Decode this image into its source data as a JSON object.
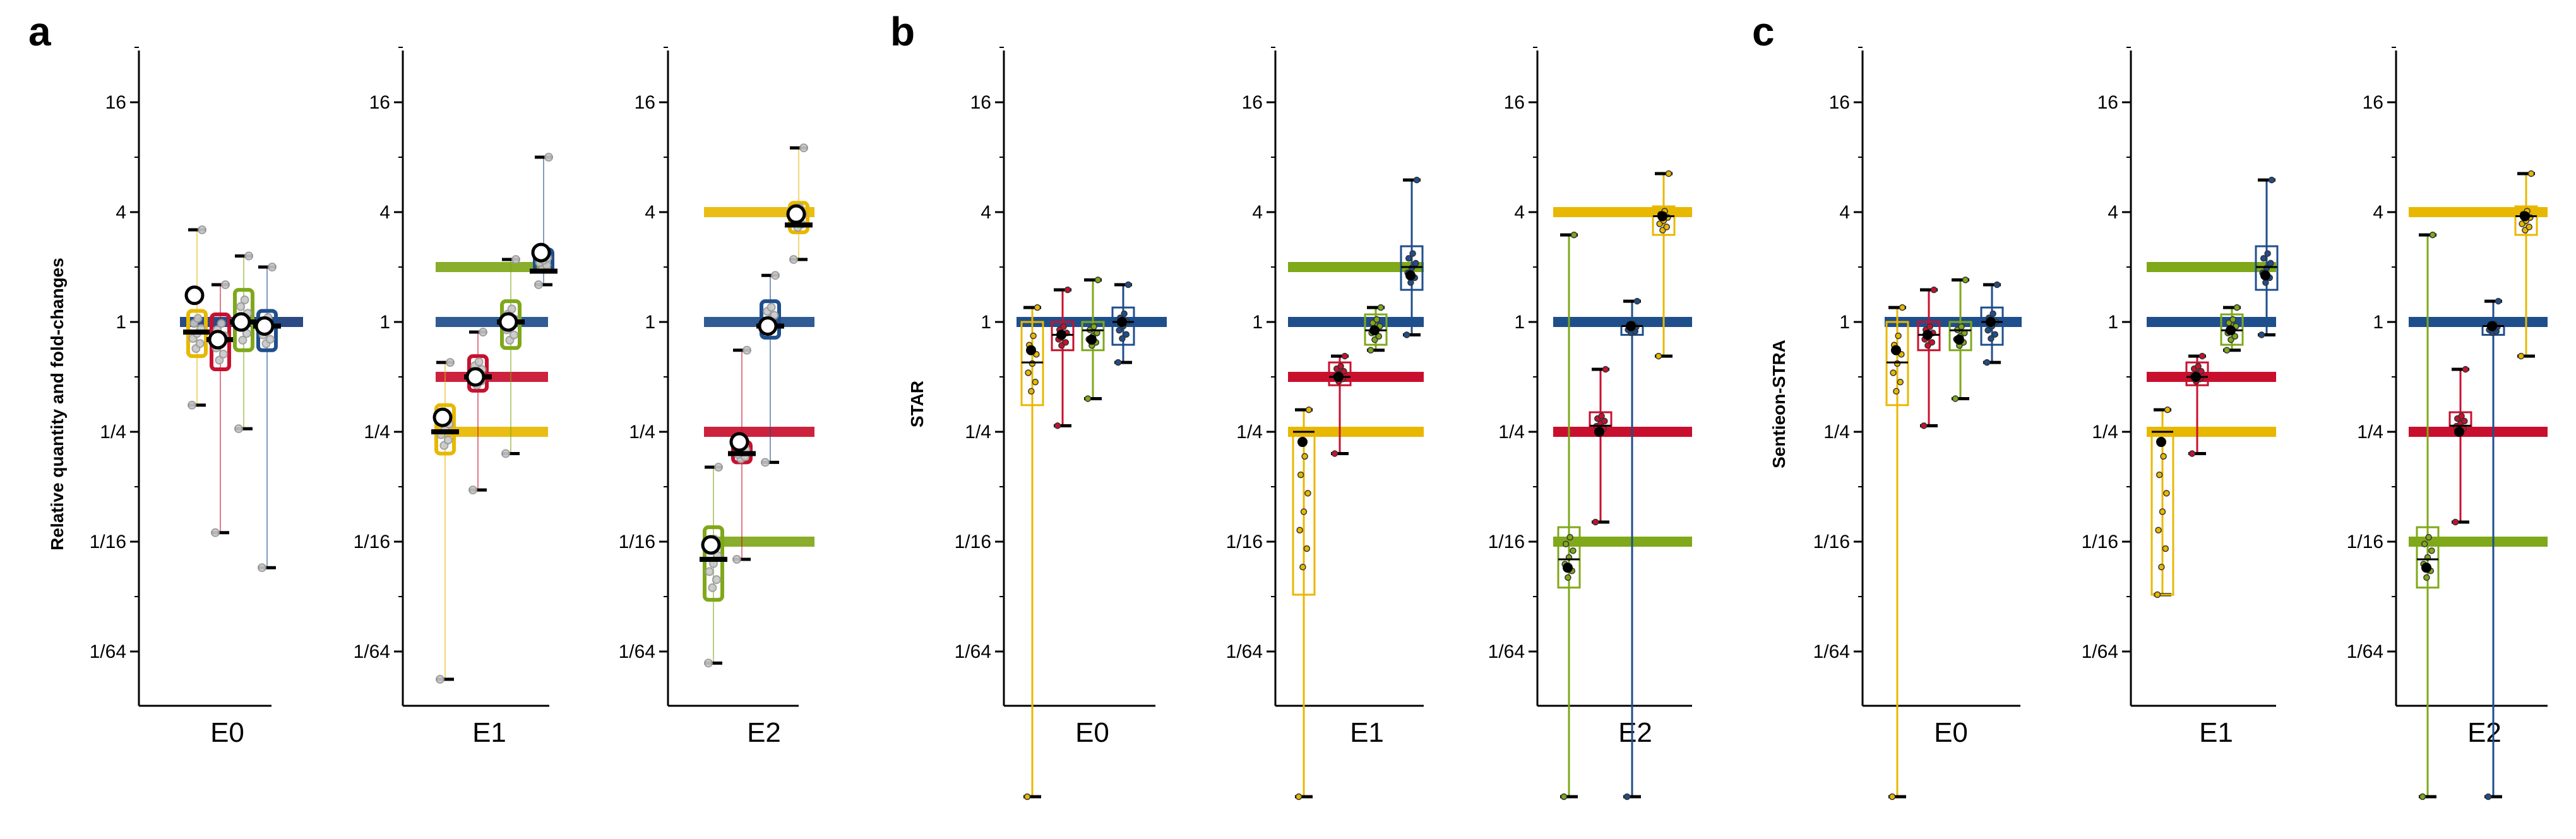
{
  "colors": {
    "y": "#E8B800",
    "r": "#C8102E",
    "g": "#7FA81A",
    "b": "#1F4E8C",
    "dot": "#9a9a9a"
  },
  "panels": [
    {
      "letter": "a",
      "ylabel": "Relative quantity and fold-changes"
    },
    {
      "letter": "b",
      "ylabel": "STAR"
    },
    {
      "letter": "c",
      "ylabel": "Sentieon-STRA"
    }
  ],
  "chart_data": {
    "type": "boxplot",
    "y_scale": "log2",
    "ylim": [
      "1/128",
      "32"
    ],
    "yticks": [
      "1/64",
      "1/16",
      "1/4",
      "1",
      "4",
      "16"
    ],
    "groups": [
      "E0",
      "E1",
      "E2"
    ],
    "series_colors": [
      "yellow",
      "red",
      "green",
      "blue"
    ],
    "reference_levels": {
      "E0": [
        1,
        1,
        1,
        1
      ],
      "E1": [
        0.25,
        0.5,
        2,
        1
      ],
      "E2": [
        4,
        0.25,
        0.0625,
        1
      ]
    },
    "plots": [
      {
        "panel": "a",
        "group": "E0",
        "boxes": [
          {
            "series": "yellow",
            "min": 0.35,
            "q1": 0.65,
            "median": 0.88,
            "q3": 1.15,
            "max": 3.2,
            "mean": 1.4
          },
          {
            "series": "red",
            "min": 0.07,
            "q1": 0.55,
            "median": 0.8,
            "q3": 1.1,
            "max": 1.6,
            "mean": 0.8
          },
          {
            "series": "green",
            "min": 0.26,
            "q1": 0.7,
            "median": 1.0,
            "q3": 1.5,
            "max": 2.3,
            "mean": 1.0
          },
          {
            "series": "blue",
            "min": 0.045,
            "q1": 0.7,
            "median": 0.95,
            "q3": 1.15,
            "max": 2.0,
            "mean": 0.95
          }
        ]
      },
      {
        "panel": "a",
        "group": "E1",
        "boxes": [
          {
            "series": "yellow",
            "min": 0.011,
            "q1": 0.19,
            "median": 0.25,
            "q3": 0.35,
            "max": 0.6,
            "mean": 0.3
          },
          {
            "series": "red",
            "min": 0.12,
            "q1": 0.42,
            "median": 0.5,
            "q3": 0.65,
            "max": 0.88,
            "mean": 0.5
          },
          {
            "series": "green",
            "min": 0.19,
            "q1": 0.72,
            "median": 1.0,
            "q3": 1.3,
            "max": 2.2,
            "mean": 1.0
          },
          {
            "series": "blue",
            "min": 1.6,
            "q1": 1.9,
            "median": 1.9,
            "q3": 2.5,
            "max": 8.0,
            "mean": 2.4
          }
        ]
      },
      {
        "panel": "a",
        "group": "E2",
        "boxes": [
          {
            "series": "green",
            "min": 0.0135,
            "q1": 0.03,
            "median": 0.05,
            "q3": 0.075,
            "max": 0.16,
            "mean": 0.06
          },
          {
            "series": "red",
            "min": 0.05,
            "q1": 0.17,
            "median": 0.19,
            "q3": 0.22,
            "max": 0.7,
            "mean": 0.22
          },
          {
            "series": "blue",
            "min": 0.17,
            "q1": 0.82,
            "median": 0.95,
            "q3": 1.3,
            "max": 1.8,
            "mean": 0.95
          },
          {
            "series": "yellow",
            "min": 2.2,
            "q1": 3.1,
            "median": 3.4,
            "q3": 4.5,
            "max": 9.0,
            "mean": 3.9
          }
        ]
      },
      {
        "panel": "b",
        "group": "E0",
        "boxes": [
          {
            "series": "yellow",
            "min": 0.0025,
            "q1": 0.35,
            "median": 0.6,
            "q3": 1.0,
            "max": 1.2,
            "mean": 0.7
          },
          {
            "series": "red",
            "min": 0.27,
            "q1": 0.7,
            "median": 0.85,
            "q3": 1.0,
            "max": 1.5,
            "mean": 0.85
          },
          {
            "series": "green",
            "min": 0.38,
            "q1": 0.7,
            "median": 0.9,
            "q3": 1.0,
            "max": 1.7,
            "mean": 0.8
          },
          {
            "series": "blue",
            "min": 0.6,
            "q1": 0.75,
            "median": 1.0,
            "q3": 1.2,
            "max": 1.6,
            "mean": 1.0
          }
        ]
      },
      {
        "panel": "b",
        "group": "E1",
        "boxes": [
          {
            "series": "yellow",
            "min": 0.0025,
            "q1": 0.032,
            "median": 0.25,
            "q3": 0.26,
            "max": 0.33,
            "mean": 0.22
          },
          {
            "series": "red",
            "min": 0.19,
            "q1": 0.45,
            "median": 0.5,
            "q3": 0.6,
            "max": 0.65,
            "mean": 0.5
          },
          {
            "series": "green",
            "min": 0.7,
            "q1": 0.75,
            "median": 0.9,
            "q3": 1.1,
            "max": 1.2,
            "mean": 0.9
          },
          {
            "series": "blue",
            "min": 0.85,
            "q1": 1.5,
            "median": 2.0,
            "q3": 2.6,
            "max": 6.0,
            "mean": 1.8
          }
        ]
      },
      {
        "panel": "b",
        "group": "E2",
        "boxes": [
          {
            "series": "green",
            "min": 0.0025,
            "q1": 0.035,
            "median": 0.05,
            "q3": 0.075,
            "max": 3.0,
            "mean": 0.045
          },
          {
            "series": "red",
            "min": 0.08,
            "q1": 0.24,
            "median": 0.27,
            "q3": 0.32,
            "max": 0.55,
            "mean": 0.25
          },
          {
            "series": "blue",
            "min": 0.0025,
            "q1": 0.85,
            "median": 0.95,
            "q3": 1.0,
            "max": 1.3,
            "mean": 0.95
          },
          {
            "series": "yellow",
            "min": 0.65,
            "q1": 3.0,
            "median": 3.8,
            "q3": 4.3,
            "max": 6.5,
            "mean": 3.8
          }
        ]
      },
      {
        "panel": "c",
        "group": "E0",
        "boxes": [
          {
            "series": "yellow",
            "min": 0.0025,
            "q1": 0.35,
            "median": 0.6,
            "q3": 1.0,
            "max": 1.2,
            "mean": 0.7
          },
          {
            "series": "red",
            "min": 0.27,
            "q1": 0.7,
            "median": 0.85,
            "q3": 1.0,
            "max": 1.5,
            "mean": 0.85
          },
          {
            "series": "green",
            "min": 0.38,
            "q1": 0.7,
            "median": 0.9,
            "q3": 1.0,
            "max": 1.7,
            "mean": 0.8
          },
          {
            "series": "blue",
            "min": 0.6,
            "q1": 0.75,
            "median": 1.0,
            "q3": 1.2,
            "max": 1.6,
            "mean": 1.0
          }
        ]
      },
      {
        "panel": "c",
        "group": "E1",
        "boxes": [
          {
            "series": "yellow",
            "min": 0.032,
            "q1": 0.032,
            "median": 0.25,
            "q3": 0.26,
            "max": 0.33,
            "mean": 0.22
          },
          {
            "series": "red",
            "min": 0.19,
            "q1": 0.45,
            "median": 0.5,
            "q3": 0.6,
            "max": 0.65,
            "mean": 0.5
          },
          {
            "series": "green",
            "min": 0.7,
            "q1": 0.75,
            "median": 0.9,
            "q3": 1.1,
            "max": 1.2,
            "mean": 0.9
          },
          {
            "series": "blue",
            "min": 0.85,
            "q1": 1.5,
            "median": 2.0,
            "q3": 2.6,
            "max": 6.0,
            "mean": 1.8
          }
        ]
      },
      {
        "panel": "c",
        "group": "E2",
        "boxes": [
          {
            "series": "green",
            "min": 0.0025,
            "q1": 0.035,
            "median": 0.05,
            "q3": 0.075,
            "max": 3.0,
            "mean": 0.045
          },
          {
            "series": "red",
            "min": 0.08,
            "q1": 0.24,
            "median": 0.27,
            "q3": 0.32,
            "max": 0.55,
            "mean": 0.25
          },
          {
            "series": "blue",
            "min": 0.0025,
            "q1": 0.85,
            "median": 0.95,
            "q3": 1.0,
            "max": 1.3,
            "mean": 0.95
          },
          {
            "series": "yellow",
            "min": 0.65,
            "q1": 3.0,
            "median": 3.8,
            "q3": 4.3,
            "max": 6.5,
            "mean": 3.8
          }
        ]
      }
    ]
  }
}
